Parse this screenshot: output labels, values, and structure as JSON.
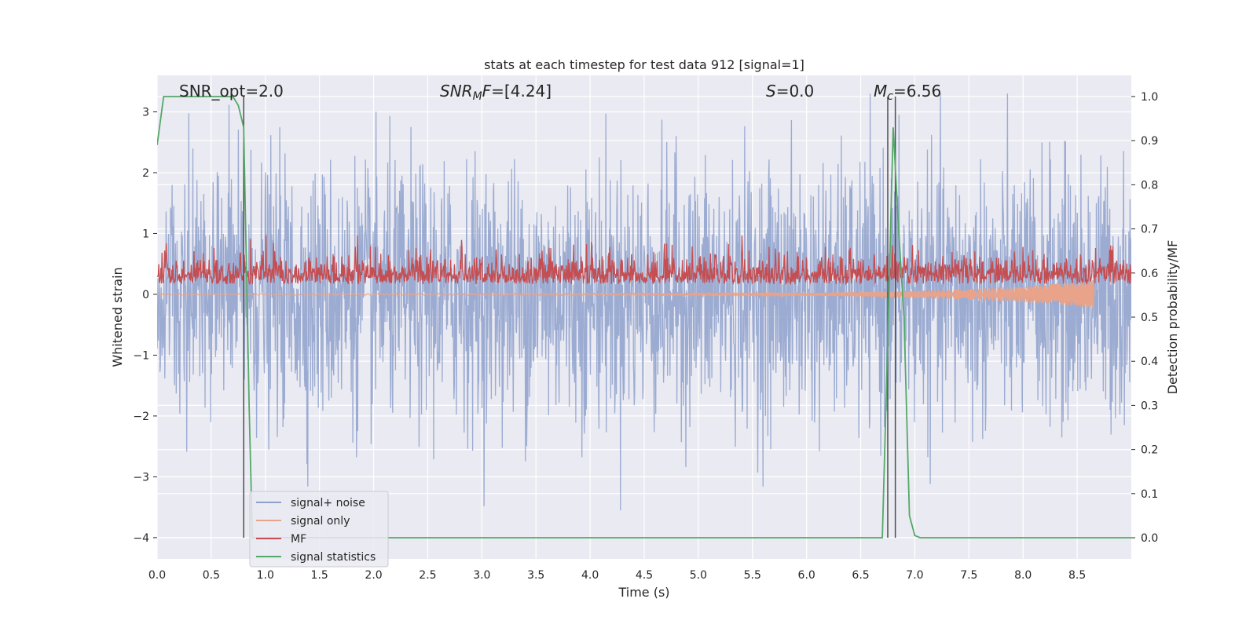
{
  "chart_data": {
    "type": "line",
    "title": "stats at each timestep for test data 912 [signal=1]",
    "xlabel": "Time (s)",
    "ylabel": "Whitened strain",
    "y2label": "Detection probability/MF",
    "xlim": [
      0.0,
      9.0
    ],
    "ylim": [
      -4.35,
      3.6
    ],
    "y2lim": [
      -0.048,
      1.048
    ],
    "xticks": [
      "0.0",
      "0.5",
      "1.0",
      "1.5",
      "2.0",
      "2.5",
      "3.0",
      "3.5",
      "4.0",
      "4.5",
      "5.0",
      "5.5",
      "6.0",
      "6.5",
      "7.0",
      "7.5",
      "8.0",
      "8.5"
    ],
    "yticks": [
      "3",
      "2",
      "1",
      "0",
      "−1",
      "−2",
      "−3",
      "−4"
    ],
    "y2ticks": [
      "1.0",
      "0.9",
      "0.8",
      "0.7",
      "0.6",
      "0.5",
      "0.4",
      "0.3",
      "0.2",
      "0.1",
      "0.0"
    ],
    "grid": true,
    "legend_position": "lower-left",
    "annotations": {
      "snr_opt": "SNR_opt=2.0",
      "snr_mf_sym": "SNR",
      "snr_mf_sub": "M",
      "snr_mf_rest": "F=[4.24]",
      "s_sym": "S",
      "s_rest": "=0.0",
      "mc_sym": "M",
      "mc_sub": "c",
      "mc_rest": "=6.56"
    },
    "vertical_lines_x": [
      0.8,
      6.75,
      6.82
    ],
    "series": [
      {
        "name": "signal+ noise",
        "color": "#8da0cb",
        "axis": "left",
        "description_values": "noise, std ~1, roughly -3.7 to 3.3"
      },
      {
        "name": "signal only",
        "color": "#e8a38a",
        "axis": "left",
        "x": [
          0.0,
          6.0,
          6.5,
          7.0,
          7.5,
          8.0,
          8.5,
          8.65,
          8.66,
          9.0
        ],
        "amplitude": [
          0.01,
          0.02,
          0.04,
          0.06,
          0.09,
          0.13,
          0.2,
          0.25,
          0.0,
          0.0
        ]
      },
      {
        "name": "MF",
        "color": "#c44e52",
        "axis": "right",
        "baseline": 0.6
      },
      {
        "name": "signal statistics",
        "color": "#55a868",
        "axis": "right",
        "x": [
          0.0,
          0.06,
          0.3,
          0.7,
          0.75,
          0.8,
          0.85,
          0.88,
          6.7,
          6.75,
          6.8,
          6.85,
          6.9,
          6.95,
          7.0,
          7.05,
          9.0
        ],
        "y": [
          0.89,
          1.0,
          1.0,
          1.0,
          0.98,
          0.93,
          0.3,
          0.0,
          0.0,
          0.45,
          0.93,
          0.7,
          0.5,
          0.05,
          0.005,
          0.0,
          0.0
        ]
      }
    ],
    "colors": {
      "plot_bg": "#eaeaf2",
      "grid": "#ffffff",
      "text": "#262626",
      "vline": "#4d4d4d"
    }
  }
}
